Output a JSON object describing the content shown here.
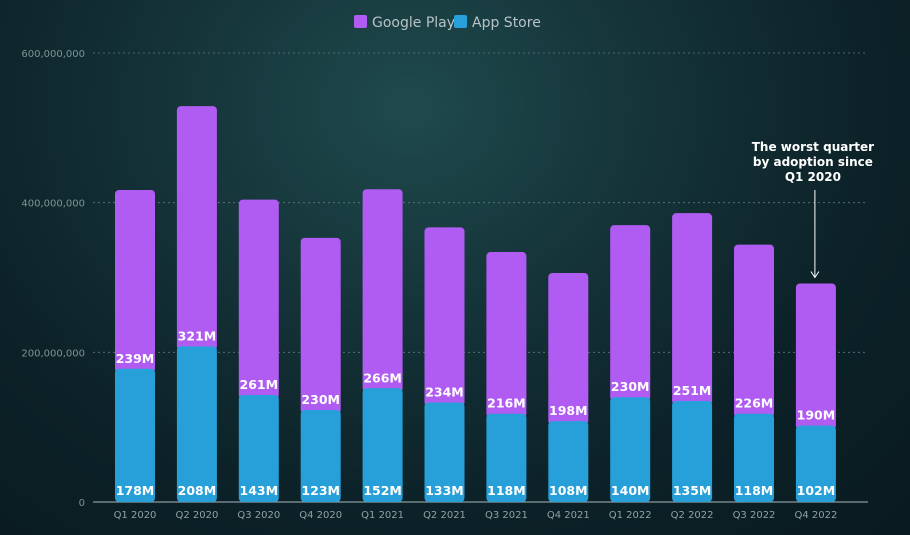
{
  "legend": [
    {
      "name": "Google Play",
      "color": "#b05cf3"
    },
    {
      "name": "App Store",
      "color": "#27a0d9"
    }
  ],
  "chart_data": {
    "type": "bar",
    "stacked": true,
    "categories": [
      "Q1 2020",
      "Q2 2020",
      "Q3 2020",
      "Q4 2020",
      "Q1 2021",
      "Q2 2021",
      "Q3 2021",
      "Q4 2021",
      "Q1 2022",
      "Q2 2022",
      "Q3 2022",
      "Q4 2022"
    ],
    "series": [
      {
        "name": "App Store",
        "color": "#27a0d9",
        "values": [
          178,
          208,
          143,
          123,
          152,
          133,
          118,
          108,
          140,
          135,
          118,
          102
        ],
        "labels": [
          "178M",
          "208M",
          "143M",
          "123M",
          "152M",
          "133M",
          "118M",
          "108M",
          "140M",
          "135M",
          "118M",
          "102M"
        ]
      },
      {
        "name": "Google Play",
        "color": "#b05cf3",
        "values": [
          239,
          321,
          261,
          230,
          266,
          234,
          216,
          198,
          230,
          251,
          226,
          190
        ],
        "labels": [
          "239M",
          "321M",
          "261M",
          "230M",
          "266M",
          "234M",
          "216M",
          "198M",
          "230M",
          "251M",
          "226M",
          "190M"
        ]
      }
    ],
    "unit_multiplier": 1000000,
    "ylim": [
      0,
      600000000
    ],
    "yticks": [
      0,
      200000000,
      400000000,
      600000000
    ],
    "ytick_labels": [
      "0",
      "200,000,000",
      "400,000,000",
      "600,000,000"
    ],
    "grid": true,
    "legend_position": "top-center",
    "annotation": {
      "category": "Q4 2022",
      "lines": [
        "The worst quarter",
        "by adoption since",
        "Q1 2020"
      ]
    }
  }
}
